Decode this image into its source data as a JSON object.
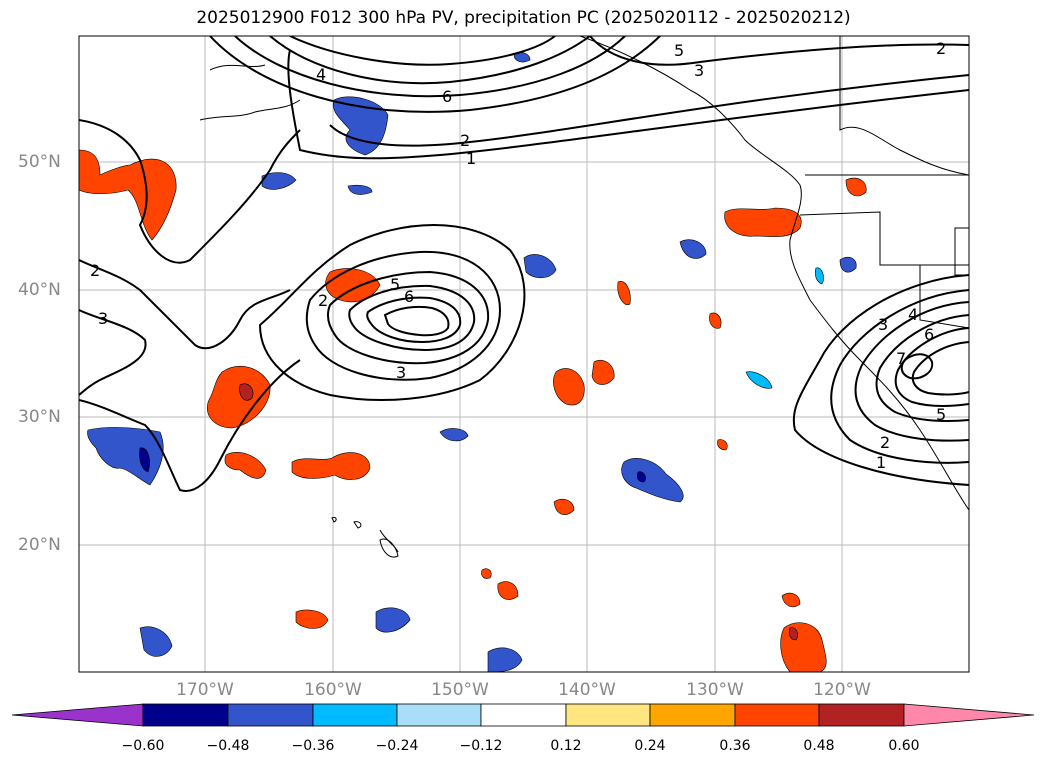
{
  "title": "2025012900 F012 300 hPa PV, precipitation PC (2025020112 - 2025020212)",
  "lat_labels": [
    "50°N",
    "40°N",
    "30°N",
    "20°N"
  ],
  "lon_labels": [
    "170°W",
    "160°W",
    "150°W",
    "140°W",
    "130°W",
    "120°W"
  ],
  "colorbar": {
    "ticks": [
      "−0.60",
      "−0.48",
      "−0.36",
      "−0.24",
      "−0.12",
      "0.12",
      "0.24",
      "0.36",
      "0.48",
      "0.60"
    ],
    "colors": [
      "#9933cc",
      "#00008b",
      "#3355cc",
      "#00bbff",
      "#aaddf7",
      "#ffffff",
      "#ffe680",
      "#ffa500",
      "#ff4400",
      "#b22222",
      "#ff88aa"
    ]
  },
  "contour_labels": {
    "north": [
      "4",
      "6",
      "2",
      "1",
      "5",
      "3",
      "2"
    ],
    "center": [
      "2",
      "5",
      "6",
      "3"
    ],
    "west": [
      "2",
      "3"
    ],
    "east": [
      "3",
      "4",
      "6",
      "7",
      "5",
      "2",
      "1"
    ]
  }
}
